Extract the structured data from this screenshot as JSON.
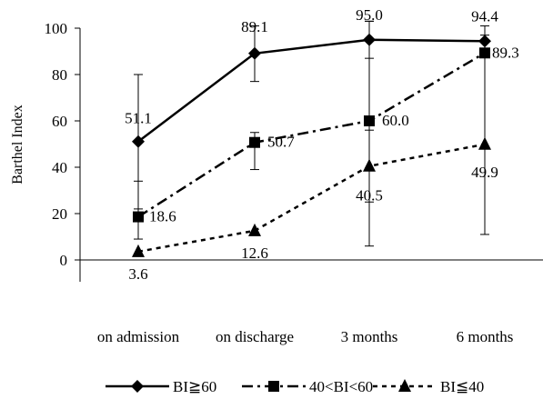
{
  "chart_data": {
    "type": "line",
    "ylabel": "Barthel Index",
    "ylim": [
      0,
      100
    ],
    "yticks": [
      0,
      20,
      40,
      60,
      80,
      100
    ],
    "categories": [
      "on admission",
      "on discharge",
      "3 months",
      "6 months"
    ],
    "grid": false,
    "legend_position": "bottom",
    "series": [
      {
        "name": "BI≧60",
        "marker": "diamond",
        "line_style": "solid",
        "values": [
          51.1,
          89.1,
          95.0,
          94.4
        ],
        "labels": [
          "51.1",
          "89.1",
          "95.0",
          "94.4"
        ],
        "error_high": [
          80,
          101,
          103,
          101
        ],
        "error_low": [
          22,
          77,
          87,
          88
        ]
      },
      {
        "name": "40<BI<60",
        "marker": "square",
        "line_style": "dash-dot",
        "values": [
          18.6,
          50.7,
          60.0,
          89.3
        ],
        "labels": [
          "18.6",
          "50.7",
          "60.0",
          "89.3"
        ],
        "error_high": [
          34,
          55,
          103,
          97
        ],
        "error_low": [
          9,
          39,
          6,
          11
        ]
      },
      {
        "name": "BI≦40",
        "marker": "triangle",
        "line_style": "dotted",
        "values": [
          3.6,
          12.6,
          40.5,
          49.9
        ],
        "labels": [
          "3.6",
          "12.6",
          "40.5",
          "49.9"
        ],
        "error_high": [
          null,
          null,
          56,
          null
        ],
        "error_low": [
          null,
          null,
          25,
          null
        ]
      }
    ]
  }
}
